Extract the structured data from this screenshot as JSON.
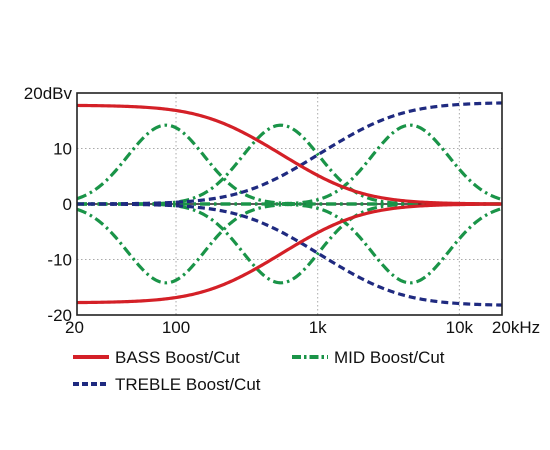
{
  "chart_data": {
    "type": "line",
    "title": "",
    "xlabel": "",
    "ylabel": "",
    "xscale": "log",
    "xlim": [
      20,
      20000
    ],
    "ylim": [
      -20,
      20
    ],
    "grid": true,
    "legend_position": "bottom",
    "x_ticks": [
      {
        "value": 20,
        "label": "20"
      },
      {
        "value": 100,
        "label": "100"
      },
      {
        "value": 1000,
        "label": "1k"
      },
      {
        "value": 10000,
        "label": "10k"
      },
      {
        "value": 20000,
        "label": "20kHz"
      }
    ],
    "y_ticks": [
      {
        "value": 20,
        "label": "20dBv"
      },
      {
        "value": 10,
        "label": "10"
      },
      {
        "value": 0,
        "label": "0"
      },
      {
        "value": -10,
        "label": "-10"
      },
      {
        "value": -20,
        "label": "-20"
      }
    ],
    "legend": [
      {
        "label": "BASS Boost/Cut",
        "color": "#d42027",
        "style": "solid"
      },
      {
        "label": "MID Boost/Cut",
        "color": "#1a9448",
        "style": "dashdot"
      },
      {
        "label": "TREBLE Boost/Cut",
        "color": "#1f2a80",
        "style": "dashed"
      }
    ],
    "curves": {
      "bass": {
        "gain_db": 17.8,
        "corner_hz": 200,
        "color": "#d42027"
      },
      "treble": {
        "gain_db": 18.3,
        "corner_hz": 3000,
        "color": "#1f2a80"
      },
      "mid": {
        "center_freqs_hz": [
          85,
          550,
          4500
        ],
        "gain_db": 14.2,
        "q": 0.9,
        "color": "#1a9448"
      }
    }
  }
}
